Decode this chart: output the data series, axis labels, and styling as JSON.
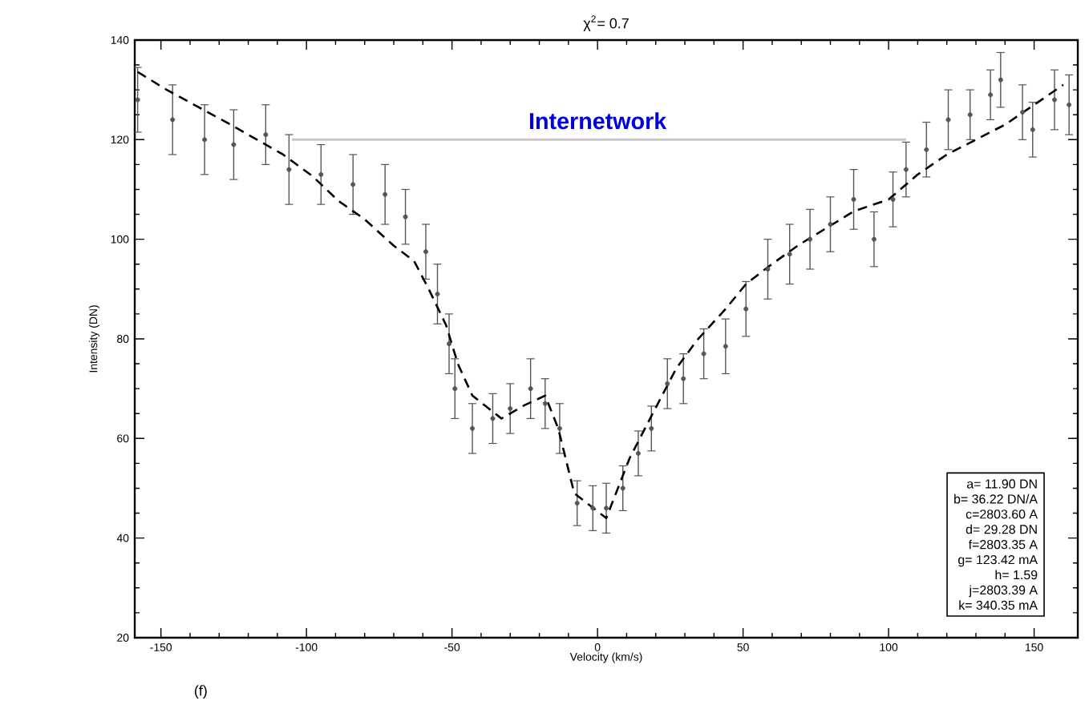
{
  "chart_data": {
    "type": "scatter",
    "title": "χ$^{2}$= 0.7",
    "xlabel": "Velocity (km/s)",
    "ylabel": "Intensity (DN)",
    "xlim": [
      -159,
      165
    ],
    "xticks": [
      -150,
      -100,
      -50,
      0,
      50,
      100,
      150
    ],
    "ylim": [
      20,
      140
    ],
    "yticks": [
      20,
      40,
      60,
      80,
      100,
      120,
      140
    ],
    "marker": "circle",
    "grid": false,
    "series": [
      {
        "color": "#555555",
        "x": [
          -158,
          -146,
          -135,
          -125,
          -114,
          -106,
          -95,
          -84,
          -73,
          -66,
          -59,
          -55,
          -51,
          -49,
          -43,
          -36,
          -30,
          -23,
          -18,
          -13,
          -7,
          -1.6,
          3,
          8.7,
          14,
          18.5,
          24,
          29.5,
          36.5,
          44,
          51,
          58.5,
          66,
          73,
          80,
          88,
          95,
          101.5,
          106,
          113,
          120.5,
          128,
          135,
          138.5,
          146,
          149.5,
          157,
          162
        ],
        "values": [
          128,
          124,
          120,
          119,
          121,
          114,
          113,
          111,
          109,
          104.5,
          97.5,
          89,
          79,
          70,
          62,
          64,
          66,
          70,
          67,
          62,
          47,
          46,
          46,
          50,
          57,
          62,
          71,
          72,
          77,
          78.5,
          86,
          94,
          97,
          100,
          103,
          108,
          100,
          108,
          114,
          118,
          124,
          125,
          129,
          132,
          125.5,
          122,
          128,
          127
        ],
        "errors": [
          6.5,
          7,
          7,
          7,
          6,
          7,
          6,
          6,
          6,
          5.5,
          5.5,
          6,
          6,
          6,
          5,
          5,
          5,
          6,
          5,
          5,
          4.5,
          4.5,
          5,
          4.5,
          4.5,
          4.5,
          5,
          5,
          5,
          5.5,
          5.5,
          6,
          6,
          6,
          5.5,
          6,
          5.5,
          5.5,
          5.5,
          5.5,
          6,
          5,
          5,
          5.5,
          5.5,
          5.5,
          6,
          6
        ]
      },
      {
        "type": "line",
        "color": "#000000",
        "line_style": "dashed",
        "marker": "none",
        "x": [
          -158,
          -148,
          -137,
          -126,
          -117,
          -108,
          -98,
          -89,
          -80,
          -70,
          -63,
          -58,
          -52,
          -48,
          -43,
          -33,
          -25,
          -18,
          -13.5,
          -8,
          3,
          11,
          18.5,
          27,
          34,
          44,
          51,
          58.5,
          69,
          88,
          100,
          110,
          120,
          130,
          140,
          150,
          160
        ],
        "values": [
          133.6,
          130,
          126.5,
          123,
          120,
          117,
          112.7,
          107.7,
          104,
          98.7,
          95.6,
          90,
          82.7,
          75,
          68.6,
          64,
          66.7,
          68.6,
          62,
          49,
          44,
          56,
          64.5,
          74,
          79.6,
          86,
          91,
          94.4,
          98.8,
          105.6,
          108,
          113,
          117,
          120,
          123,
          127,
          131
        ]
      },
      {
        "type": "line",
        "color": "#c8c8c8",
        "marker": "none",
        "x": [
          -105,
          106
        ],
        "values": [
          120,
          120
        ]
      }
    ],
    "annotations": [
      {
        "text": "Internetwork",
        "x": 0,
        "y": 120
      },
      "(f)",
      "a=   11.90 DN",
      "b=   36.22 DN/A",
      "c=2803.60 A",
      "d=   29.28 DN",
      "f=2803.35 A",
      "g= 123.42 mA",
      "h=     1.59",
      "j=2803.39 A",
      "k= 340.35 mA"
    ]
  }
}
